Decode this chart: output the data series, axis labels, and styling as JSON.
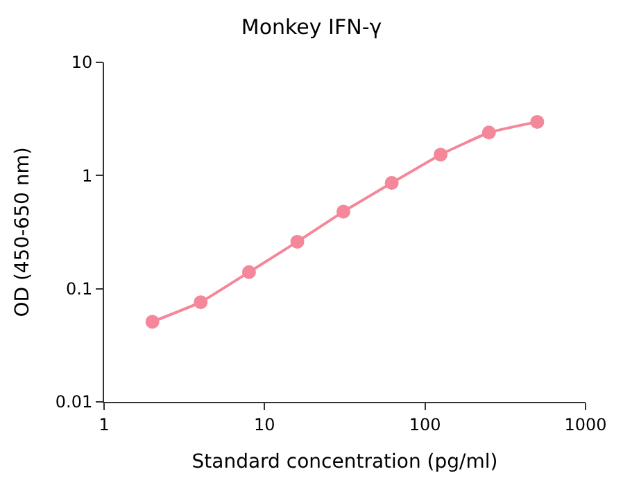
{
  "chart_data": {
    "type": "line",
    "title": "Monkey IFN-γ",
    "xlabel": "Standard concentration (pg/ml)",
    "ylabel": "OD (450-650 nm)",
    "x": [
      2,
      4,
      8,
      16,
      31,
      62,
      125,
      250,
      500
    ],
    "series": [
      {
        "color": "#f4879a",
        "values": [
          0.051,
          0.076,
          0.14,
          0.26,
          0.48,
          0.86,
          1.53,
          2.4,
          2.98
        ]
      }
    ],
    "log": "xy",
    "xlim": [
      1,
      1000
    ],
    "xticks": [
      1,
      10,
      100,
      1000
    ],
    "ylim": [
      0.01,
      10
    ],
    "yticks": [
      0.01,
      0.1,
      1,
      10
    ],
    "marker": "circle",
    "line_style": "solid"
  }
}
